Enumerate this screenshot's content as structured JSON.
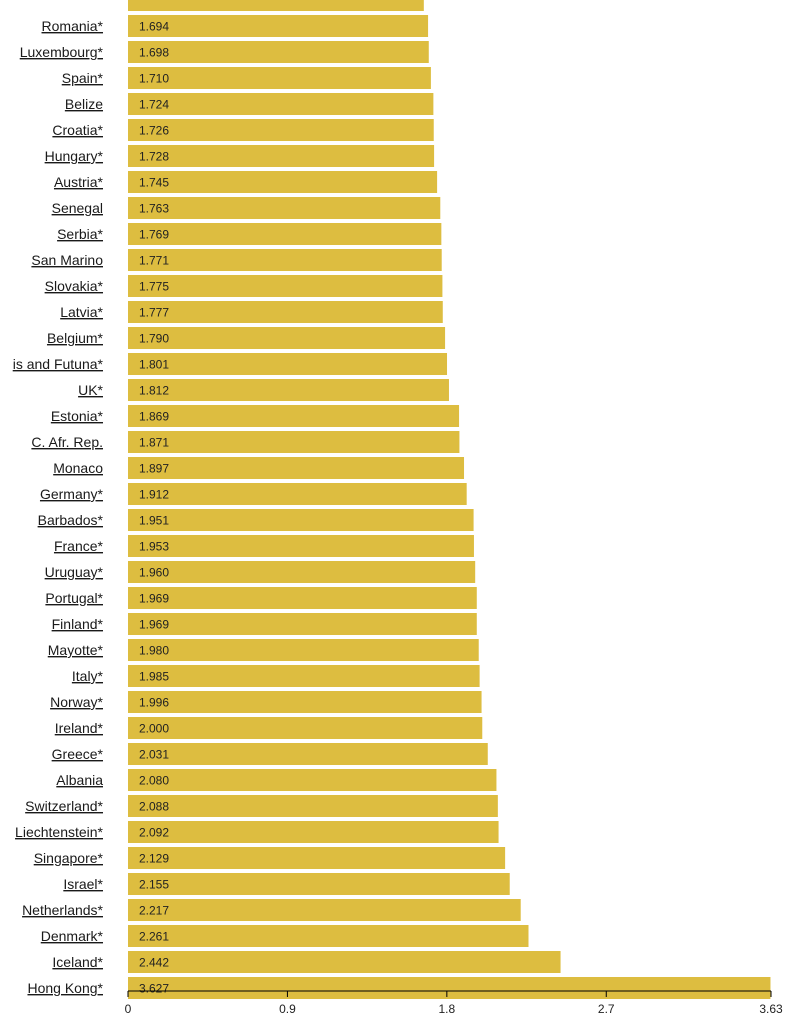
{
  "chart_data": {
    "type": "bar",
    "orientation": "horizontal",
    "categories": [
      "",
      "Romania*",
      "Luxembourg*",
      "Spain*",
      "Belize",
      "Croatia*",
      "Hungary*",
      "Austria*",
      "Senegal",
      "Serbia*",
      "San Marino",
      "Slovakia*",
      "Latvia*",
      "Belgium*",
      "is and Futuna*",
      "UK*",
      "Estonia*",
      "C. Afr. Rep.",
      "Monaco",
      "Germany*",
      "Barbados*",
      "France*",
      "Uruguay*",
      "Portugal*",
      "Finland*",
      "Mayotte*",
      "Italy*",
      "Norway*",
      "Ireland*",
      "Greece*",
      "Albania",
      "Switzerland*",
      "Liechtenstein*",
      "Singapore*",
      "Israel*",
      "Netherlands*",
      "Denmark*",
      "Iceland*",
      "Hong Kong*"
    ],
    "values": [
      1.67,
      1.694,
      1.698,
      1.71,
      1.724,
      1.726,
      1.728,
      1.745,
      1.763,
      1.769,
      1.771,
      1.775,
      1.777,
      1.79,
      1.801,
      1.812,
      1.869,
      1.871,
      1.897,
      1.912,
      1.951,
      1.953,
      1.96,
      1.969,
      1.969,
      1.98,
      1.985,
      1.996,
      2.0,
      2.031,
      2.08,
      2.088,
      2.092,
      2.129,
      2.155,
      2.217,
      2.261,
      2.442,
      3.627
    ],
    "value_labels": [
      "",
      "1.694",
      "1.698",
      "1.710",
      "1.724",
      "1.726",
      "1.728",
      "1.745",
      "1.763",
      "1.769",
      "1.771",
      "1.775",
      "1.777",
      "1.790",
      "1.801",
      "1.812",
      "1.869",
      "1.871",
      "1.897",
      "1.912",
      "1.951",
      "1.953",
      "1.960",
      "1.969",
      "1.969",
      "1.980",
      "1.985",
      "1.996",
      "2.000",
      "2.031",
      "2.080",
      "2.088",
      "2.092",
      "2.129",
      "2.155",
      "2.217",
      "2.261",
      "2.442",
      "3.627"
    ],
    "xlim": [
      0,
      3.63
    ],
    "xticks": [
      0,
      0.9,
      1.8,
      2.7,
      3.63
    ],
    "xtick_labels": [
      "0",
      "0.9",
      "1.8",
      "2.7",
      "3.63"
    ],
    "bar_color": "#ddbd40",
    "grid": false,
    "title": "",
    "xlabel": "",
    "ylabel": ""
  }
}
